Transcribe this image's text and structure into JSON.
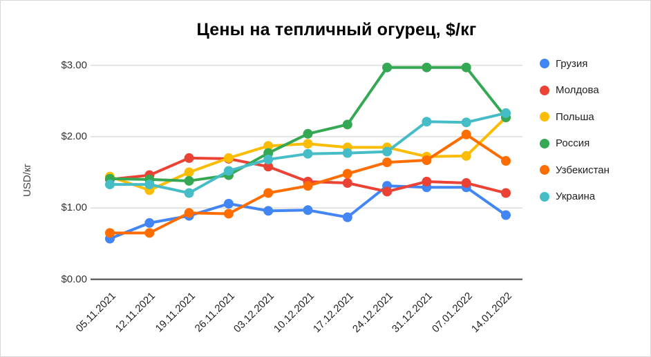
{
  "chart_data": {
    "type": "line",
    "title": "Цены на тепличный огурец, $/кг",
    "ylabel": "USD/кг",
    "xlabel": "",
    "grid": true,
    "legend_position": "right",
    "ylim": [
      0,
      3
    ],
    "y_ticks": [
      {
        "value": 0,
        "label": "$0.00"
      },
      {
        "value": 1,
        "label": "$1.00"
      },
      {
        "value": 2,
        "label": "$2.00"
      },
      {
        "value": 3,
        "label": "$3.00"
      }
    ],
    "categories": [
      "05.11.2021",
      "12.11.2021",
      "19.11.2021",
      "26.11.2021",
      "03.12.2021",
      "10.12.2021",
      "17.12.2021",
      "24.12.2021",
      "31.12.2021",
      "07.01.2022",
      "14.01.2022"
    ],
    "series": [
      {
        "name": "Грузия",
        "color": "#4285F4",
        "values": [
          0.57,
          0.79,
          0.89,
          1.06,
          0.96,
          0.97,
          0.87,
          1.31,
          1.29,
          1.29,
          0.9
        ]
      },
      {
        "name": "Молдова",
        "color": "#EA4335",
        "values": [
          1.4,
          1.46,
          1.7,
          1.69,
          1.58,
          1.37,
          1.35,
          1.23,
          1.37,
          1.35,
          1.21
        ]
      },
      {
        "name": "Польша",
        "color": "#FBBC04",
        "values": [
          1.44,
          1.25,
          1.5,
          1.7,
          1.87,
          1.9,
          1.85,
          1.85,
          1.72,
          1.73,
          2.27
        ]
      },
      {
        "name": "Россия",
        "color": "#34A853",
        "values": [
          1.41,
          1.4,
          1.38,
          1.46,
          1.77,
          2.04,
          2.17,
          2.97,
          2.97,
          2.97,
          2.27
        ]
      },
      {
        "name": "Узбекистан",
        "color": "#FF6D01",
        "values": [
          0.65,
          0.65,
          0.93,
          0.92,
          1.21,
          1.31,
          1.48,
          1.64,
          1.67,
          2.03,
          1.66
        ]
      },
      {
        "name": "Украина",
        "color": "#46BDC6",
        "values": [
          1.33,
          1.33,
          1.21,
          1.52,
          1.68,
          1.76,
          1.77,
          1.79,
          2.21,
          2.2,
          2.33
        ]
      }
    ],
    "style": {
      "gridline_color": "#dcdcdc",
      "baseline_color": "#424242",
      "title_color": "#000000"
    }
  }
}
